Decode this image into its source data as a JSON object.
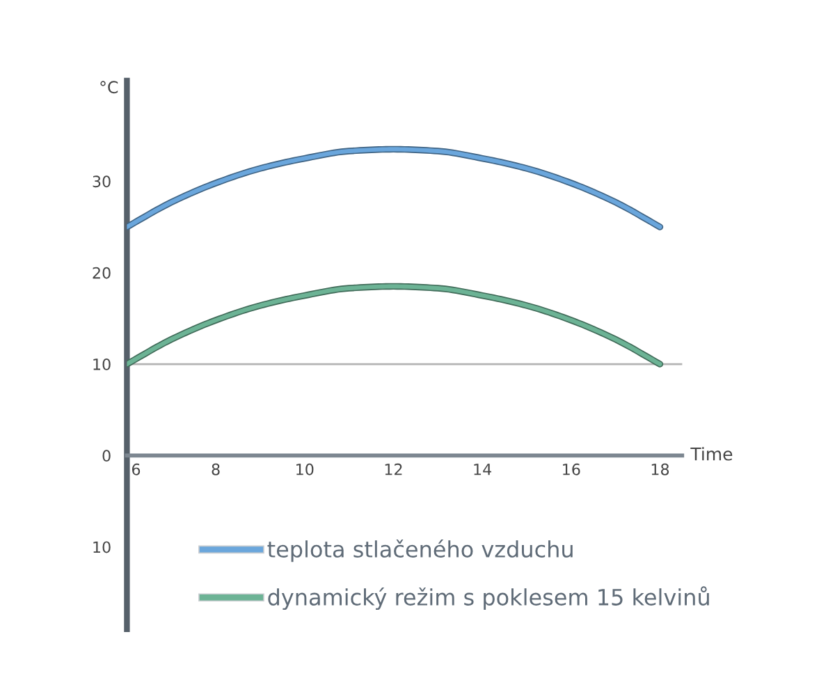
{
  "chart_data": {
    "type": "line",
    "ylabel": "°C",
    "xlabel": "Time",
    "x": [
      6,
      7,
      8,
      9,
      10,
      11,
      12,
      13,
      14,
      15,
      16,
      17,
      18
    ],
    "series": [
      {
        "name": "teplota stlačeného vzduchu",
        "color": "#6aa6dc",
        "values": [
          25,
          27.7,
          29.8,
          31.4,
          32.5,
          33.3,
          33.5,
          33.3,
          32.5,
          31.4,
          29.8,
          27.7,
          25
        ]
      },
      {
        "name": "dynamický režim s poklesem 15 kelvinů",
        "color": "#6cb395",
        "values": [
          10,
          12.7,
          14.8,
          16.4,
          17.5,
          18.3,
          18.5,
          18.3,
          17.5,
          16.4,
          14.8,
          12.7,
          10
        ]
      }
    ],
    "xlim": [
      6,
      18.5
    ],
    "ylim": [
      -19,
      41
    ],
    "xticks": [
      6,
      8,
      10,
      12,
      14,
      16,
      18
    ],
    "yticks": [
      {
        "value": -10,
        "label": "10"
      },
      0,
      10,
      20,
      30
    ],
    "ref_lines": [
      {
        "axis": "y",
        "value": 10,
        "color": "#b3b3b3"
      }
    ],
    "legend": "bottom",
    "line_style": "solid"
  }
}
